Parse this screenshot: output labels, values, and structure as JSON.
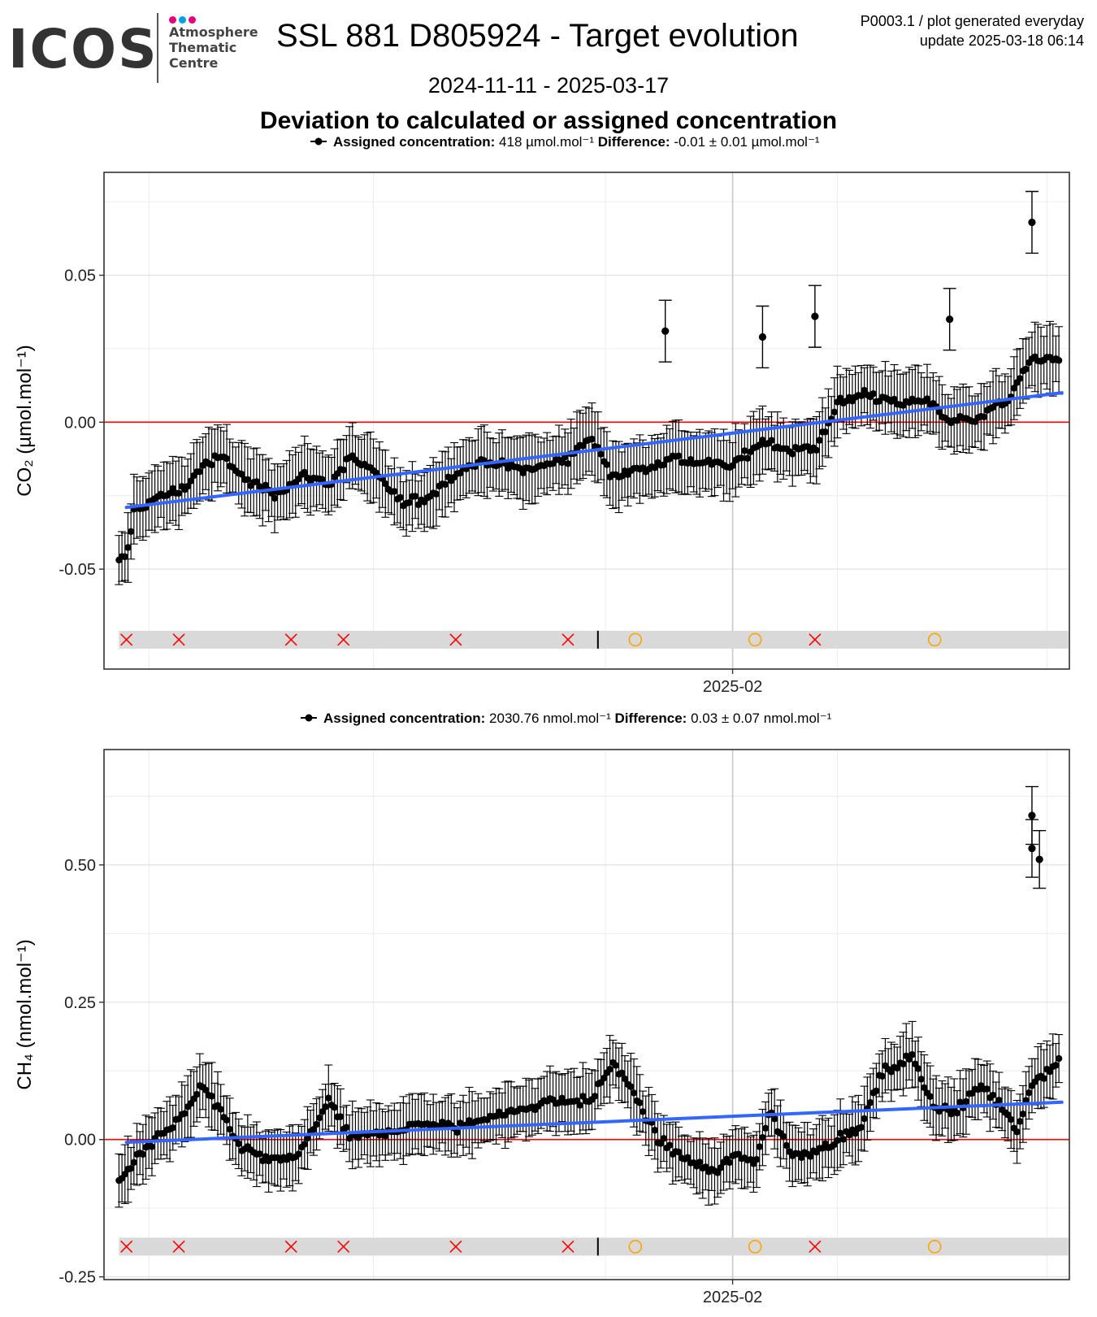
{
  "header": {
    "logo_word": "ICOS",
    "logo_sub_1": "Atmosphere",
    "logo_sub_2": "Thematic",
    "logo_sub_3": "Centre",
    "title": "SSL 881 D805924 - Target evolution",
    "meta_line_1": "P0003.1 / plot generated everyday",
    "meta_line_2": "update  2025-03-18 06:14",
    "date_range": "2024-11-11 - 2025-03-17",
    "subtitle": "Deviation to calculated or assigned concentration"
  },
  "colors": {
    "points": "#000000",
    "trend": "#3366ff",
    "zero_line": "#ff0000",
    "event_band": "#d9d9d9",
    "event_cross": "#ff0000",
    "event_circle": "#ffa500",
    "logo_dots": [
      "#e6007e",
      "#00a0e3",
      "#e6007e"
    ]
  },
  "chart_data": [
    {
      "type": "scatter",
      "gas": "CO2",
      "legend_label": "Assigned concentration:",
      "legend_value": "418 µmol.mol⁻¹",
      "legend_diff_label": "Difference:",
      "legend_diff_value": "-0.01 ± 0.01 µmol.mol⁻¹",
      "ylabel": "CO₂ (µmol.mol⁻¹)",
      "xlim": [
        "2024-11-09",
        "2025-03-18"
      ],
      "ylim": [
        -0.084,
        0.085
      ],
      "yticks": [
        -0.05,
        0.0,
        0.05
      ],
      "ytick_labels": [
        "-0.05",
        "0.00",
        "0.05"
      ],
      "xticks": [
        "2025-02"
      ],
      "grid": true,
      "legend_position": "top",
      "trend": {
        "start": [
          "2024-11-12",
          -0.029
        ],
        "end": [
          "2025-03-17",
          0.01
        ]
      },
      "series_anchors": [
        [
          "2024-11-11",
          -0.048
        ],
        [
          "2024-11-12",
          -0.046
        ],
        [
          "2024-11-13",
          -0.03
        ],
        [
          "2024-11-16",
          -0.026
        ],
        [
          "2024-11-20",
          -0.022
        ],
        [
          "2024-11-22",
          -0.015
        ],
        [
          "2024-11-25",
          -0.012
        ],
        [
          "2024-11-28",
          -0.02
        ],
        [
          "2024-12-02",
          -0.024
        ],
        [
          "2024-12-06",
          -0.018
        ],
        [
          "2024-12-09",
          -0.021
        ],
        [
          "2024-12-12",
          -0.012
        ],
        [
          "2024-12-15",
          -0.017
        ],
        [
          "2024-12-19",
          -0.028
        ],
        [
          "2024-12-22",
          -0.026
        ],
        [
          "2024-12-26",
          -0.017
        ],
        [
          "2024-12-30",
          -0.013
        ],
        [
          "2025-01-03",
          -0.016
        ],
        [
          "2025-01-07",
          -0.015
        ],
        [
          "2025-01-10",
          -0.012
        ],
        [
          "2025-01-13",
          -0.005
        ],
        [
          "2025-01-16",
          -0.018
        ],
        [
          "2025-01-20",
          -0.016
        ],
        [
          "2025-01-24",
          -0.012
        ],
        [
          "2025-01-28",
          -0.014
        ],
        [
          "2025-02-01",
          -0.015
        ],
        [
          "2025-02-05",
          -0.006
        ],
        [
          "2025-02-09",
          -0.01
        ],
        [
          "2025-02-12",
          -0.009
        ],
        [
          "2025-02-15",
          0.006
        ],
        [
          "2025-02-19",
          0.01
        ],
        [
          "2025-02-23",
          0.006
        ],
        [
          "2025-02-27",
          0.008
        ],
        [
          "2025-03-02",
          0.0
        ],
        [
          "2025-03-06",
          0.002
        ],
        [
          "2025-03-10",
          0.008
        ],
        [
          "2025-03-13",
          0.022
        ],
        [
          "2025-03-17",
          0.021
        ]
      ],
      "outliers": [
        [
          "2025-01-23",
          0.031
        ],
        [
          "2025-02-05",
          0.029
        ],
        [
          "2025-02-12",
          0.036
        ],
        [
          "2025-03-02",
          0.035
        ],
        [
          "2025-03-13",
          0.068
        ]
      ],
      "error_bar": 0.01,
      "events": [
        {
          "date": "2024-11-12",
          "kind": "cross"
        },
        {
          "date": "2024-11-19",
          "kind": "cross"
        },
        {
          "date": "2024-12-04",
          "kind": "cross"
        },
        {
          "date": "2024-12-11",
          "kind": "cross"
        },
        {
          "date": "2024-12-26",
          "kind": "cross"
        },
        {
          "date": "2025-01-10",
          "kind": "cross"
        },
        {
          "date": "2025-01-14",
          "kind": "bar"
        },
        {
          "date": "2025-01-19",
          "kind": "circle"
        },
        {
          "date": "2025-02-04",
          "kind": "circle"
        },
        {
          "date": "2025-02-12",
          "kind": "cross"
        },
        {
          "date": "2025-02-28",
          "kind": "circle"
        }
      ],
      "event_band_level": -0.074
    },
    {
      "type": "scatter",
      "gas": "CH4",
      "legend_label": "Assigned concentration:",
      "legend_value": "2030.76 nmol.mol⁻¹",
      "legend_diff_label": "Difference:",
      "legend_diff_value": "0.03 ± 0.07 nmol.mol⁻¹",
      "ylabel": "CH₄ (nmol.mol⁻¹)",
      "xlim": [
        "2024-11-09",
        "2025-03-18"
      ],
      "ylim": [
        -0.255,
        0.71
      ],
      "yticks": [
        -0.25,
        0.0,
        0.25,
        0.5
      ],
      "ytick_labels": [
        "-0.25",
        "0.00",
        "0.25",
        "0.50"
      ],
      "xticks": [
        "2025-02"
      ],
      "grid": true,
      "legend_position": "top",
      "trend": {
        "start": [
          "2024-11-12",
          -0.005
        ],
        "end": [
          "2025-03-17",
          0.068
        ]
      },
      "series_anchors": [
        [
          "2024-11-11",
          -0.08
        ],
        [
          "2024-11-12",
          -0.06
        ],
        [
          "2024-11-14",
          -0.02
        ],
        [
          "2024-11-17",
          0.01
        ],
        [
          "2024-11-20",
          0.05
        ],
        [
          "2024-11-22",
          0.1
        ],
        [
          "2024-11-24",
          0.06
        ],
        [
          "2024-11-27",
          -0.01
        ],
        [
          "2024-12-01",
          -0.04
        ],
        [
          "2024-12-05",
          -0.03
        ],
        [
          "2024-12-09",
          0.07
        ],
        [
          "2024-12-12",
          0.0
        ],
        [
          "2024-12-15",
          0.01
        ],
        [
          "2024-12-19",
          0.02
        ],
        [
          "2024-12-22",
          0.03
        ],
        [
          "2024-12-26",
          0.02
        ],
        [
          "2024-12-30",
          0.04
        ],
        [
          "2025-01-03",
          0.05
        ],
        [
          "2025-01-07",
          0.07
        ],
        [
          "2025-01-10",
          0.07
        ],
        [
          "2025-01-13",
          0.07
        ],
        [
          "2025-01-16",
          0.14
        ],
        [
          "2025-01-19",
          0.08
        ],
        [
          "2025-01-22",
          0.0
        ],
        [
          "2025-01-26",
          -0.04
        ],
        [
          "2025-01-30",
          -0.06
        ],
        [
          "2025-02-01",
          -0.03
        ],
        [
          "2025-02-04",
          -0.04
        ],
        [
          "2025-02-06",
          0.05
        ],
        [
          "2025-02-09",
          -0.03
        ],
        [
          "2025-02-12",
          -0.02
        ],
        [
          "2025-02-15",
          0.0
        ],
        [
          "2025-02-18",
          0.02
        ],
        [
          "2025-02-21",
          0.12
        ],
        [
          "2025-02-25",
          0.15
        ],
        [
          "2025-02-28",
          0.06
        ],
        [
          "2025-03-03",
          0.05
        ],
        [
          "2025-03-06",
          0.1
        ],
        [
          "2025-03-09",
          0.06
        ],
        [
          "2025-03-11",
          0.02
        ],
        [
          "2025-03-13",
          0.1
        ],
        [
          "2025-03-17",
          0.15
        ]
      ],
      "outliers": [
        [
          "2025-03-13",
          0.53
        ],
        [
          "2025-03-13",
          0.59
        ],
        [
          "2025-03-14",
          0.51
        ]
      ],
      "error_bar": 0.05,
      "events": [
        {
          "date": "2024-11-12",
          "kind": "cross"
        },
        {
          "date": "2024-11-19",
          "kind": "cross"
        },
        {
          "date": "2024-12-04",
          "kind": "cross"
        },
        {
          "date": "2024-12-11",
          "kind": "cross"
        },
        {
          "date": "2024-12-26",
          "kind": "cross"
        },
        {
          "date": "2025-01-10",
          "kind": "cross"
        },
        {
          "date": "2025-01-14",
          "kind": "bar"
        },
        {
          "date": "2025-01-19",
          "kind": "circle"
        },
        {
          "date": "2025-02-04",
          "kind": "circle"
        },
        {
          "date": "2025-02-12",
          "kind": "cross"
        },
        {
          "date": "2025-02-28",
          "kind": "circle"
        }
      ],
      "event_band_level": -0.195
    }
  ]
}
